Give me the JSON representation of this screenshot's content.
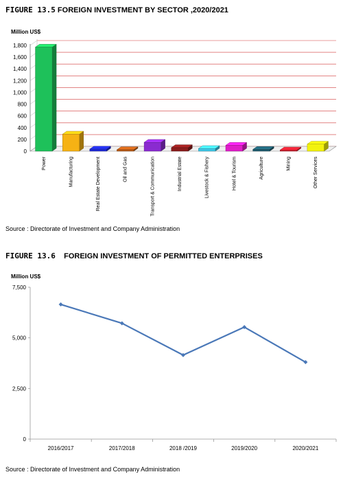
{
  "chart_data": [
    {
      "type": "bar",
      "figure_number": "FIGURE 13.5",
      "title": "FOREIGN INVESTMENT BY SECTOR ,2020/2021",
      "ylabel": "Million US$",
      "ylim": [
        0,
        1800
      ],
      "yticks": [
        "0",
        "200",
        "400",
        "600",
        "800",
        "1,000",
        "1,200",
        "1,400",
        "1,600",
        "1,800"
      ],
      "categories": [
        "Power",
        "Manufacturing",
        "Real Estate Development",
        "Oil and Gas",
        "Transport & Communication",
        "Industrial Estate",
        "Livestock & Fishery",
        "Hotel & Tourism",
        "Agriculture",
        "Mining",
        "Other Services"
      ],
      "values": [
        1770,
        290,
        35,
        25,
        150,
        60,
        45,
        100,
        30,
        20,
        120
      ],
      "colors": [
        "#1ec15a",
        "#f6b214",
        "#1f2ad6",
        "#b85a16",
        "#8a2bd0",
        "#8a1c1c",
        "#3ec7e6",
        "#e01ec8",
        "#1f5c6e",
        "#d81e2e",
        "#f2f20e"
      ],
      "grid": true,
      "source": "Source : Directorate of Investment and Company Administration"
    },
    {
      "type": "line",
      "figure_number": "FIGURE 13.6",
      "title": "FOREIGN INVESTMENT OF PERMITTED ENTERPRISES",
      "ylabel": "Million US$",
      "ylim": [
        0,
        7500
      ],
      "yticks": [
        "0",
        "2,500",
        "5,000",
        "7,500"
      ],
      "categories": [
        "2016/2017",
        "2017/2018",
        "2018 /2019",
        "2019/2020",
        "2020/2021"
      ],
      "values": [
        6650,
        5720,
        4150,
        5530,
        3800
      ],
      "color": "#4a78b8",
      "grid": false,
      "source": "Source : Directorate of Investment and Company Administration"
    }
  ]
}
